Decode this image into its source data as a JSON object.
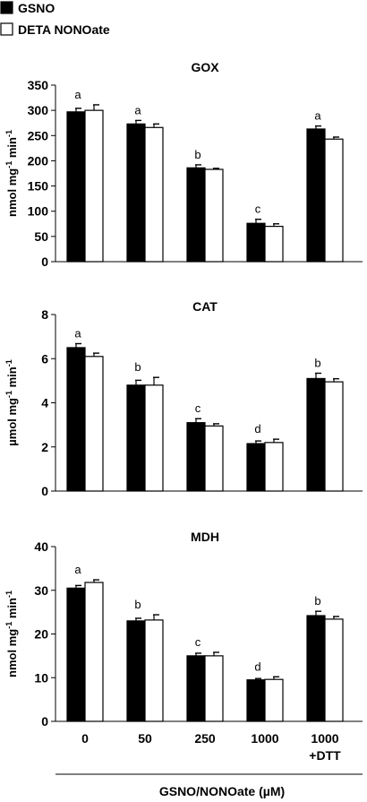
{
  "legend": [
    {
      "name": "GSNO",
      "color": "#000000"
    },
    {
      "name": "DETA NONOate",
      "color": "#ffffff"
    }
  ],
  "x_axis": {
    "categories": [
      "0",
      "50",
      "250",
      "1000",
      "1000\n+DTT"
    ],
    "label": "GSNO/NONOate (µM)"
  },
  "chart_data": [
    {
      "type": "bar",
      "title": "GOX",
      "ylabel": "nmol mg-1 min-1",
      "ylim": [
        0,
        350
      ],
      "yticks": [
        0,
        50,
        100,
        150,
        200,
        250,
        300,
        350
      ],
      "categories": [
        "0",
        "50",
        "250",
        "1000",
        "1000\n+DTT"
      ],
      "series": [
        {
          "name": "GSNO",
          "values": [
            297,
            273,
            186,
            76,
            263
          ],
          "errors": [
            7,
            7,
            6,
            8,
            6
          ]
        },
        {
          "name": "DETA NONOate",
          "values": [
            300,
            266,
            183,
            70,
            243
          ],
          "errors": [
            11,
            7,
            2,
            5,
            4
          ]
        }
      ],
      "annotations": [
        "a",
        "a",
        "b",
        "c",
        "a"
      ]
    },
    {
      "type": "bar",
      "title": "CAT",
      "ylabel": "µmol mg-1 min-1",
      "ylim": [
        0,
        8
      ],
      "yticks": [
        0,
        2,
        4,
        6,
        8
      ],
      "categories": [
        "0",
        "50",
        "250",
        "1000",
        "1000\n+DTT"
      ],
      "series": [
        {
          "name": "GSNO",
          "values": [
            6.5,
            4.8,
            3.1,
            2.15,
            5.1
          ],
          "errors": [
            0.18,
            0.22,
            0.18,
            0.12,
            0.24
          ]
        },
        {
          "name": "DETA NONOate",
          "values": [
            6.1,
            4.8,
            2.95,
            2.2,
            4.95
          ],
          "errors": [
            0.15,
            0.35,
            0.1,
            0.15,
            0.14
          ]
        }
      ],
      "annotations": [
        "a",
        "b",
        "c",
        "d",
        "b"
      ]
    },
    {
      "type": "bar",
      "title": "MDH",
      "ylabel": "nmol mg-1 min-1",
      "ylim": [
        0,
        40
      ],
      "yticks": [
        0,
        10,
        20,
        30,
        40
      ],
      "categories": [
        "0",
        "50",
        "250",
        "1000",
        "1000\n+DTT"
      ],
      "series": [
        {
          "name": "GSNO",
          "values": [
            30.5,
            23,
            15,
            9.5,
            24.2
          ],
          "errors": [
            0.6,
            0.6,
            0.6,
            0.3,
            1.0
          ]
        },
        {
          "name": "DETA NONOate",
          "values": [
            31.8,
            23.2,
            15,
            9.6,
            23.4
          ],
          "errors": [
            0.6,
            1.2,
            0.8,
            0.6,
            0.6
          ]
        }
      ],
      "annotations": [
        "a",
        "b",
        "c",
        "d",
        "b"
      ]
    }
  ]
}
